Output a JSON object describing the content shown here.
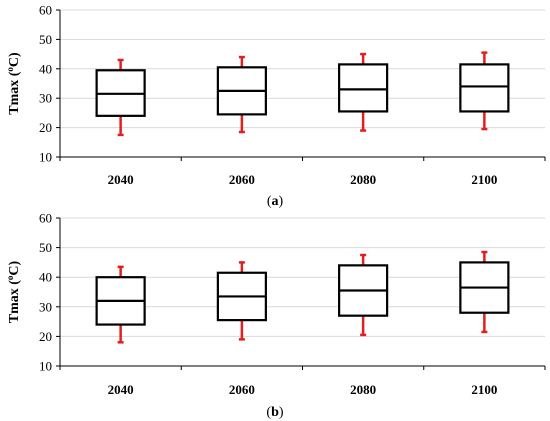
{
  "chart_data": [
    {
      "type": "box",
      "caption_prefix": "(",
      "caption_letter": "a",
      "caption_suffix": ")",
      "ylabel": "Tmax (",
      "ylabel_sup": "o",
      "ylabel_unit": "C)",
      "ylim": [
        10,
        60
      ],
      "yticks": [
        10,
        20,
        30,
        40,
        50,
        60
      ],
      "grid": true,
      "categories": [
        "2040",
        "2060",
        "2080",
        "2100"
      ],
      "boxes": [
        {
          "min": 17.5,
          "q1": 24,
          "median": 31.5,
          "q3": 39.5,
          "max": 43
        },
        {
          "min": 18.5,
          "q1": 24.5,
          "median": 32.5,
          "q3": 40.5,
          "max": 44
        },
        {
          "min": 19,
          "q1": 25.5,
          "median": 33,
          "q3": 41.5,
          "max": 45
        },
        {
          "min": 19.5,
          "q1": 25.5,
          "median": 34,
          "q3": 41.5,
          "max": 45.5
        }
      ],
      "colors": {
        "box": "#000000",
        "whisker": "#e02020",
        "grid": "#d9d9d9"
      }
    },
    {
      "type": "box",
      "caption_prefix": "(",
      "caption_letter": "b",
      "caption_suffix": ")",
      "ylabel": "Tmax (",
      "ylabel_sup": "o",
      "ylabel_unit": "C)",
      "ylim": [
        10,
        60
      ],
      "yticks": [
        10,
        20,
        30,
        40,
        50,
        60
      ],
      "grid": true,
      "categories": [
        "2040",
        "2060",
        "2080",
        "2100"
      ],
      "boxes": [
        {
          "min": 18,
          "q1": 24,
          "median": 32,
          "q3": 40,
          "max": 43.5
        },
        {
          "min": 19,
          "q1": 25.5,
          "median": 33.5,
          "q3": 41.5,
          "max": 45
        },
        {
          "min": 20.5,
          "q1": 27,
          "median": 35.5,
          "q3": 44,
          "max": 47.5
        },
        {
          "min": 21.5,
          "q1": 28,
          "median": 36.5,
          "q3": 45,
          "max": 48.5
        }
      ],
      "colors": {
        "box": "#000000",
        "whisker": "#e02020",
        "grid": "#d9d9d9"
      }
    }
  ]
}
